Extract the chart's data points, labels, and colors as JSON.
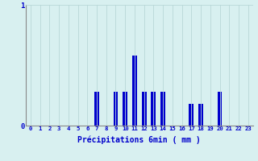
{
  "categories": [
    0,
    1,
    2,
    3,
    4,
    5,
    6,
    7,
    8,
    9,
    10,
    11,
    12,
    13,
    14,
    15,
    16,
    17,
    18,
    19,
    20,
    21,
    22,
    23
  ],
  "values": [
    0,
    0,
    0,
    0,
    0,
    0,
    0,
    0.28,
    0,
    0.28,
    0.28,
    0.58,
    0.28,
    0.28,
    0.28,
    0,
    0,
    0.18,
    0.18,
    0,
    0.28,
    0,
    0,
    0
  ],
  "bar_color": "#0000cc",
  "background_color": "#d8f0f0",
  "grid_color": "#b8d8d8",
  "axis_color": "#888888",
  "text_color": "#0000cc",
  "xlabel": "Précipitations 6min ( mm )",
  "ylim": [
    0,
    1.0
  ],
  "yticks": [
    0,
    1
  ],
  "bar_width": 0.5
}
